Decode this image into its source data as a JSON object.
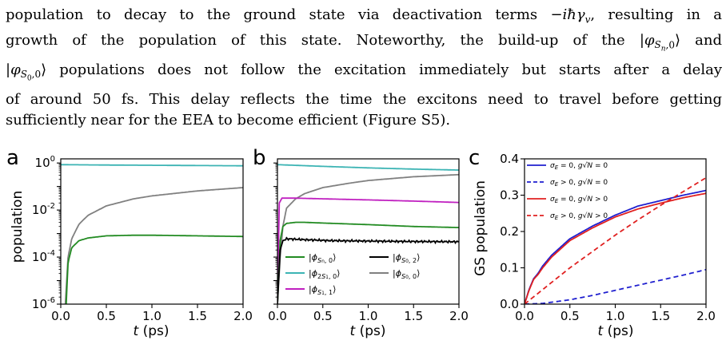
{
  "paragraph": {
    "lines": [
      "population to decay to the ground state via deactivation terms −iħγ_v, resulting in a",
      "growth of the population of this state. Noteworthy, the build-up of the |φ_{S_n,0}⟩ and",
      "|φ_{S_0,0}⟩ populations does not follow the excitation immediately but starts after a delay",
      "of around 50 fs. This delay reflects the time the excitons need to travel before getting",
      "sufficiently near for the EEA to become efficient (Figure S5)."
    ]
  },
  "figure": {
    "panel_labels": [
      "a",
      "b",
      "c"
    ],
    "x_label": "t (ps)",
    "y_label_a": "population",
    "y_label_c": "GS population"
  },
  "colors": {
    "green": "#228b22",
    "cyan": "#3cb4b4",
    "magenta": "#c020c0",
    "black": "#000000",
    "gray": "#808080",
    "blue": "#1f1fcf",
    "red": "#e02020"
  },
  "chart_data": [
    {
      "type": "line",
      "panel": "a",
      "ylabel": "population",
      "xlabel": "t (ps)",
      "yscale": "log",
      "xlim": [
        0,
        2.0
      ],
      "ylim": [
        1e-06,
        1.5
      ],
      "xticks": [
        "0.0",
        "0.5",
        "1.0",
        "1.5",
        "2.0"
      ],
      "yticks": [
        "10^-6",
        "10^-4",
        "10^-2",
        "10^0"
      ],
      "series": [
        {
          "color": "cyan",
          "x": [
            0,
            0.5,
            1.0,
            1.5,
            2.0
          ],
          "y": [
            0.85,
            0.82,
            0.8,
            0.78,
            0.76
          ]
        },
        {
          "color": "gray",
          "x": [
            0.05,
            0.08,
            0.12,
            0.2,
            0.3,
            0.5,
            0.8,
            1.0,
            1.5,
            2.0
          ],
          "y": [
            1e-06,
            0.0001,
            0.0006,
            0.0025,
            0.006,
            0.015,
            0.03,
            0.04,
            0.065,
            0.09
          ]
        },
        {
          "color": "green",
          "x": [
            0.06,
            0.08,
            0.12,
            0.2,
            0.3,
            0.5,
            0.8,
            1.0,
            1.5,
            2.0
          ],
          "y": [
            1e-06,
            6e-05,
            0.00025,
            0.0005,
            0.00065,
            0.0008,
            0.00085,
            0.00085,
            0.0008,
            0.00075
          ]
        }
      ]
    },
    {
      "type": "line",
      "panel": "b",
      "xlabel": "t (ps)",
      "yscale": "log",
      "xlim": [
        0,
        2.0
      ],
      "ylim": [
        1e-06,
        1.5
      ],
      "xticks": [
        "0.0",
        "0.5",
        "1.0",
        "1.5",
        "2.0"
      ],
      "legend": [
        {
          "label": "|φ_{S_n,0}⟩",
          "color": "green"
        },
        {
          "label": "|φ_{2S_1,0}⟩",
          "color": "cyan"
        },
        {
          "label": "|φ_{S_1,1}⟩",
          "color": "magenta"
        },
        {
          "label": "|φ_{S_0,2}⟩",
          "color": "black"
        },
        {
          "label": "|φ_{S_0,0}⟩",
          "color": "gray"
        }
      ],
      "series": [
        {
          "color": "cyan",
          "x": [
            0,
            0.5,
            1.0,
            1.5,
            2.0
          ],
          "y": [
            0.85,
            0.72,
            0.62,
            0.55,
            0.5
          ]
        },
        {
          "color": "gray",
          "x": [
            0.0,
            0.03,
            0.06,
            0.1,
            0.2,
            0.3,
            0.5,
            0.8,
            1.0,
            1.5,
            2.0
          ],
          "y": [
            1e-06,
            0.0001,
            0.002,
            0.012,
            0.03,
            0.05,
            0.09,
            0.14,
            0.18,
            0.26,
            0.32
          ]
        },
        {
          "color": "magenta",
          "x": [
            0.0,
            0.02,
            0.05,
            0.2,
            0.5,
            1.0,
            1.5,
            2.0
          ],
          "y": [
            1e-06,
            0.02,
            0.032,
            0.032,
            0.03,
            0.027,
            0.024,
            0.021
          ]
        },
        {
          "color": "green",
          "x": [
            0.0,
            0.03,
            0.06,
            0.1,
            0.2,
            0.3,
            0.5,
            1.0,
            1.5,
            2.0
          ],
          "y": [
            1e-06,
            0.0005,
            0.002,
            0.0027,
            0.003,
            0.003,
            0.0028,
            0.0024,
            0.002,
            0.0018
          ]
        },
        {
          "color": "black",
          "x": [
            0.0,
            0.03,
            0.06,
            0.1,
            0.3,
            0.6,
            1.0,
            1.5,
            2.0
          ],
          "y": [
            1e-06,
            0.0002,
            0.0005,
            0.0006,
            0.00055,
            0.0005,
            0.00048,
            0.00046,
            0.00045
          ],
          "noisy": true
        }
      ]
    },
    {
      "type": "line",
      "panel": "c",
      "ylabel": "GS population",
      "xlabel": "t (ps)",
      "xlim": [
        0,
        2.0
      ],
      "ylim": [
        0,
        0.4
      ],
      "xticks": [
        "0.0",
        "0.5",
        "1.0",
        "1.5",
        "2.0"
      ],
      "yticks": [
        "0.0",
        "0.1",
        "0.2",
        "0.3",
        "0.4"
      ],
      "legend": [
        {
          "label": "σ_E = 0, g√N = 0",
          "color": "blue",
          "dashed": false
        },
        {
          "label": "σ_E > 0, g√N = 0",
          "color": "blue",
          "dashed": true
        },
        {
          "label": "σ_E = 0, g√N > 0",
          "color": "red",
          "dashed": false
        },
        {
          "label": "σ_E > 0, g√N > 0",
          "color": "red",
          "dashed": true
        }
      ],
      "series": [
        {
          "color": "blue",
          "dashed": false,
          "x": [
            0,
            0.05,
            0.1,
            0.15,
            0.2,
            0.3,
            0.5,
            0.75,
            1.0,
            1.25,
            1.5,
            1.75,
            2.0
          ],
          "y": [
            0,
            0.04,
            0.07,
            0.085,
            0.105,
            0.135,
            0.18,
            0.215,
            0.245,
            0.27,
            0.285,
            0.3,
            0.313
          ]
        },
        {
          "color": "blue",
          "dashed": true,
          "x": [
            0,
            0.2,
            0.5,
            0.75,
            1.0,
            1.25,
            1.5,
            1.75,
            2.0
          ],
          "y": [
            0,
            0.002,
            0.012,
            0.024,
            0.038,
            0.052,
            0.066,
            0.08,
            0.095
          ]
        },
        {
          "color": "red",
          "dashed": false,
          "x": [
            0,
            0.05,
            0.1,
            0.15,
            0.2,
            0.3,
            0.5,
            0.75,
            1.0,
            1.25,
            1.5,
            1.75,
            2.0
          ],
          "y": [
            0,
            0.038,
            0.068,
            0.082,
            0.1,
            0.13,
            0.175,
            0.21,
            0.24,
            0.262,
            0.278,
            0.293,
            0.305
          ]
        },
        {
          "color": "red",
          "dashed": true,
          "x": [
            0,
            0.1,
            0.25,
            0.5,
            0.75,
            1.0,
            1.25,
            1.5,
            1.75,
            2.0
          ],
          "y": [
            0,
            0.02,
            0.05,
            0.1,
            0.145,
            0.19,
            0.232,
            0.272,
            0.31,
            0.348
          ]
        }
      ]
    }
  ]
}
